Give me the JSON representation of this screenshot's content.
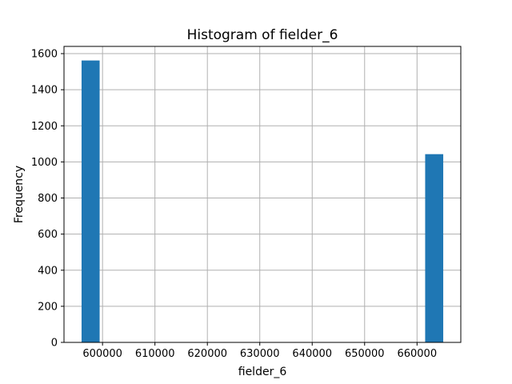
{
  "chart_data": {
    "type": "bar",
    "title": "Histogram of fielder_6",
    "xlabel": "fielder_6",
    "ylabel": "Frequency",
    "xlim": [
      592650,
      668350
    ],
    "ylim": [
      0,
      1640
    ],
    "grid": true,
    "bar_color": "#1f77b4",
    "bins": [
      {
        "x0": 596000,
        "x1": 599450,
        "value": 1562
      },
      {
        "x0": 661550,
        "x1": 665000,
        "value": 1043
      }
    ],
    "x_ticks": [
      600000,
      610000,
      620000,
      630000,
      640000,
      650000,
      660000
    ],
    "y_ticks": [
      0,
      200,
      400,
      600,
      800,
      1000,
      1200,
      1400,
      1600
    ]
  }
}
